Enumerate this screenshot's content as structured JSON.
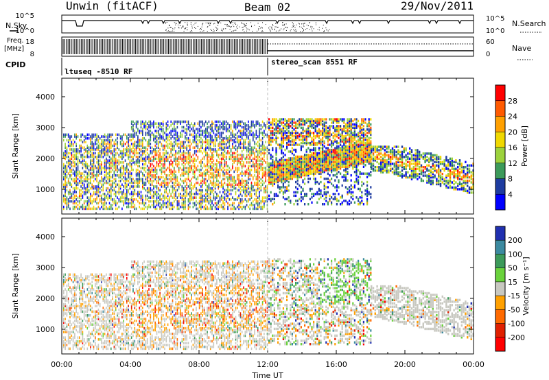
{
  "header": {
    "title": "Unwin (fitACF)",
    "beam": "Beam 02",
    "date": "29/Nov/2011"
  },
  "top_panel": {
    "left_label": "N.Sky",
    "right_label": "N.Search",
    "yticks_left": [
      "10^5",
      "10^0"
    ],
    "yticks_right": [
      "10^5",
      "10^0"
    ]
  },
  "freq_panel": {
    "left_label_1": "Freq.",
    "left_label_2": "[MHz]",
    "right_label": "Nave",
    "yticks_left": [
      "18",
      "8"
    ],
    "yticks_right": [
      "60",
      "0"
    ]
  },
  "cpid_panel": {
    "label": "CPID",
    "segments": [
      {
        "name": "ltuseq -8510 RF",
        "start_hour": 0
      },
      {
        "name": "stereo_scan 8551 RF",
        "start_hour": 12
      }
    ]
  },
  "chart_data": [
    {
      "type": "heatmap",
      "name": "power",
      "ylabel": "Slant Range [km]",
      "ylim": [
        200,
        4600
      ],
      "yticks": [
        1000,
        2000,
        3000,
        4000
      ],
      "xlim": [
        0,
        24
      ],
      "colorbar": {
        "label": "Power [dB]",
        "ticks": [
          "28",
          "24",
          "20",
          "16",
          "12",
          "8",
          "4"
        ],
        "colors": [
          "#ff0000",
          "#ff5a00",
          "#ffa000",
          "#f0d800",
          "#9cd23c",
          "#3c9a5a",
          "#1e3ca0",
          "#0000ff"
        ]
      },
      "regions": [
        {
          "x": [
            0.5,
            12
          ],
          "y": [
            300,
            3300
          ],
          "note": "ltuseq scatter"
        },
        {
          "x": [
            12,
            18
          ],
          "y": [
            500,
            3300
          ],
          "note": "stereo_scan scatter"
        },
        {
          "x": [
            18,
            24
          ],
          "y": [
            600,
            2200
          ],
          "note": "evening band"
        }
      ]
    },
    {
      "type": "heatmap",
      "name": "velocity",
      "ylabel": "Slant Range [km]",
      "ylim": [
        200,
        4600
      ],
      "yticks": [
        1000,
        2000,
        3000,
        4000
      ],
      "xlim": [
        0,
        24
      ],
      "xlabel": "Time UT",
      "xticks": [
        "00:00",
        "04:00",
        "08:00",
        "12:00",
        "16:00",
        "20:00",
        "00:00"
      ],
      "colorbar": {
        "label": "Velocity [m s⁻¹]",
        "ticks": [
          "200",
          "100",
          "50",
          "15",
          "-15",
          "-50",
          "-100",
          "-200"
        ],
        "colors": [
          "#2030b0",
          "#3c8aa0",
          "#3c9a5a",
          "#6ad23c",
          "#c8c8c0",
          "#ffa000",
          "#ff6a00",
          "#e02000",
          "#ff0000"
        ]
      }
    }
  ]
}
